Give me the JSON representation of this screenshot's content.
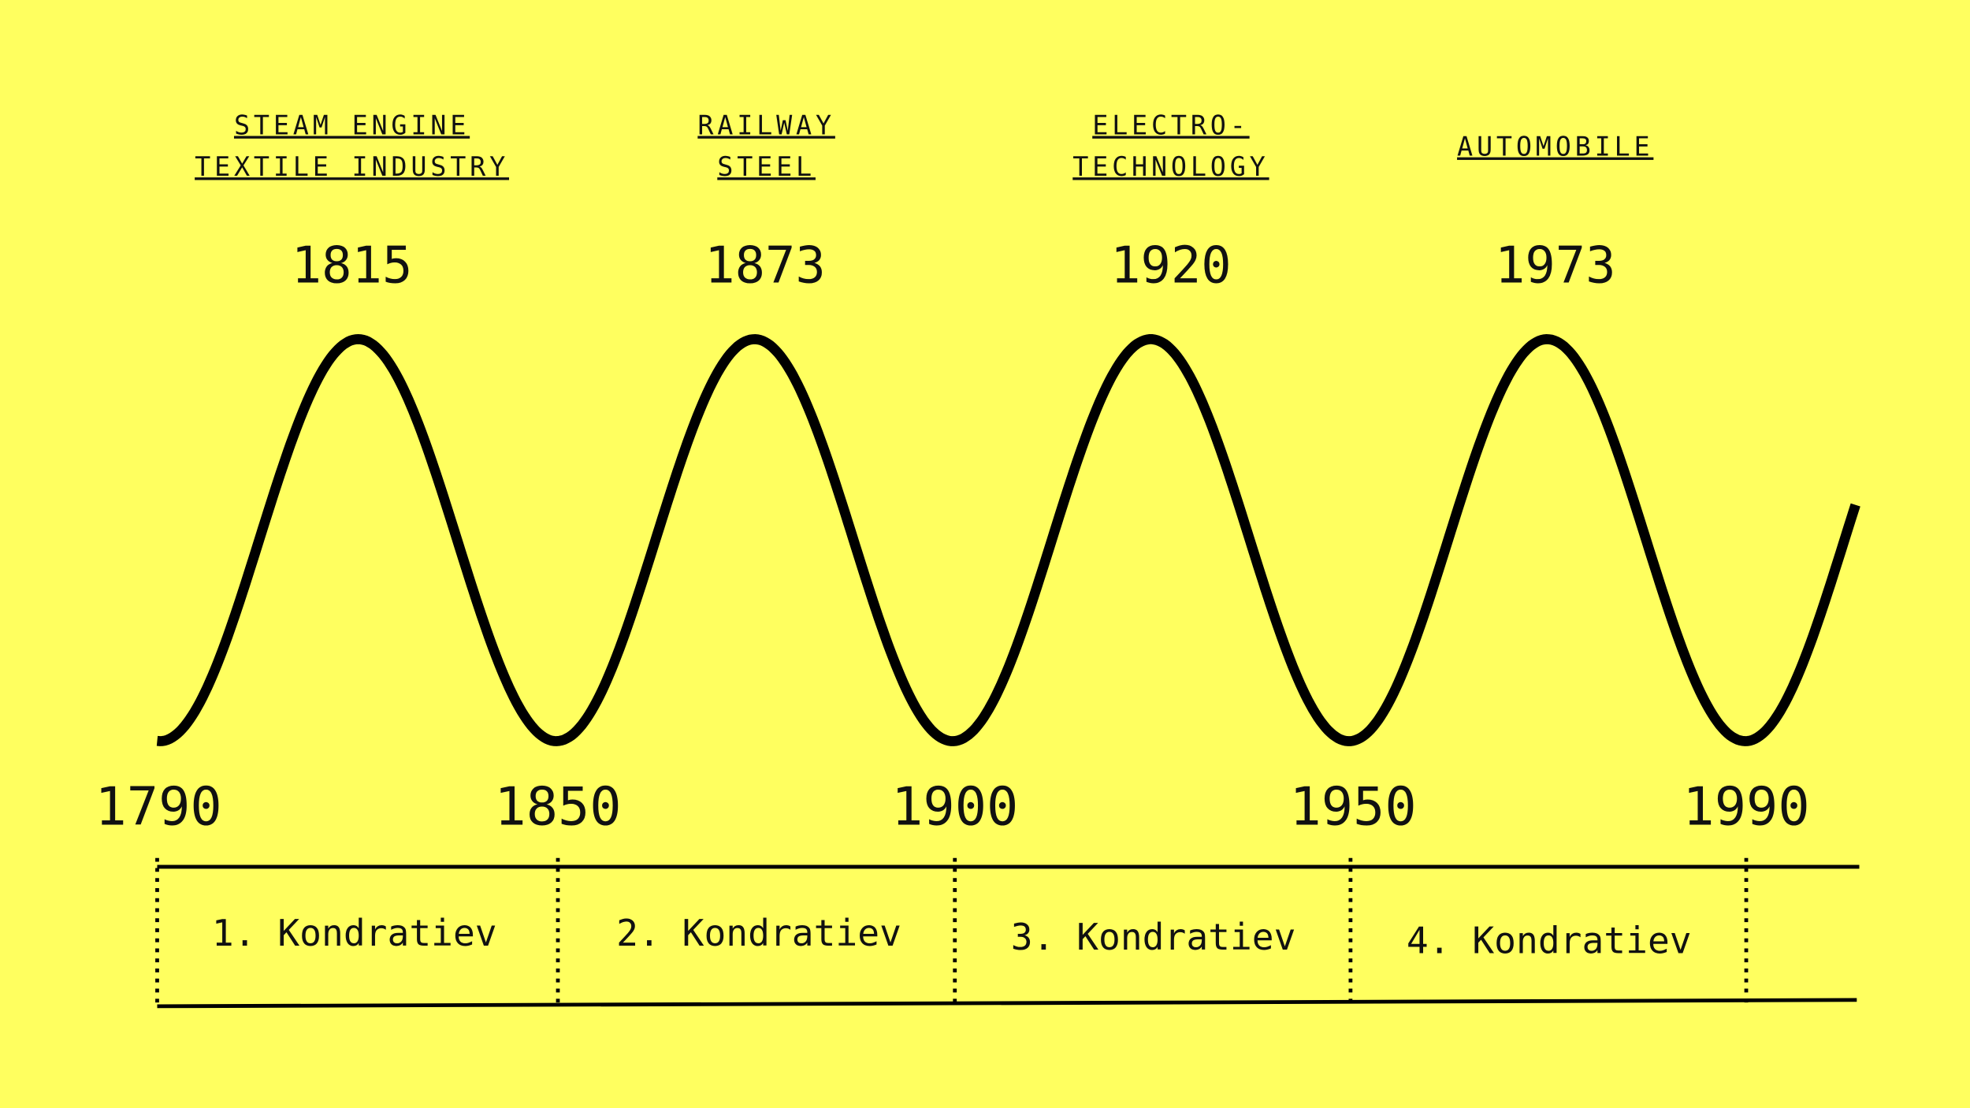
{
  "waves": [
    {
      "topic": [
        "STEAM ENGINE",
        "TEXTILE INDUSTRY"
      ],
      "peak": "1815",
      "period": "1. Kondratiev"
    },
    {
      "topic": [
        "RAILWAY",
        "STEEL"
      ],
      "peak": "1873",
      "period": "2. Kondratiev"
    },
    {
      "topic": [
        "ELECTRO-",
        "TECHNOLOGY"
      ],
      "peak": "1920",
      "period": "3. Kondratiev"
    },
    {
      "topic": [
        "AUTOMOBILE"
      ],
      "peak": "1973",
      "period": "4. Kondratiev"
    }
  ],
  "boundaries": [
    "1790",
    "1850",
    "1900",
    "1950",
    "1990"
  ]
}
